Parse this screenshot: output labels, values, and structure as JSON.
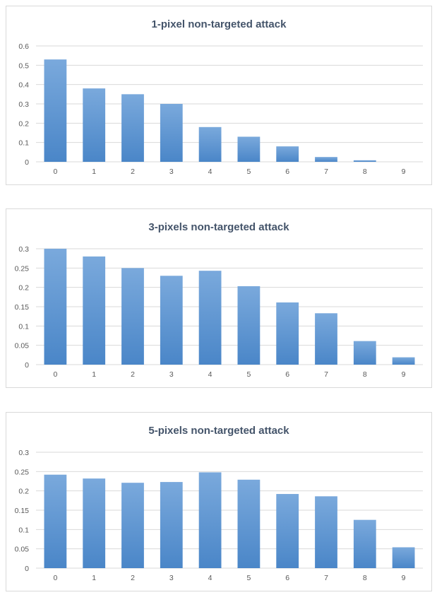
{
  "chart_data": [
    {
      "type": "bar",
      "title": "1-pixel non-targeted attack",
      "xlabel": "",
      "ylabel": "",
      "categories": [
        "0",
        "1",
        "2",
        "3",
        "4",
        "5",
        "6",
        "7",
        "8",
        "9"
      ],
      "values": [
        0.53,
        0.38,
        0.35,
        0.3,
        0.18,
        0.13,
        0.08,
        0.025,
        0.008,
        0.0
      ],
      "ylim": [
        0,
        0.6
      ],
      "yticks": [
        "0",
        "0.1",
        "0.2",
        "0.3",
        "0.4",
        "0.5",
        "0.6"
      ],
      "grid": true,
      "legend": "none",
      "bar_color": "#5b9bd5"
    },
    {
      "type": "bar",
      "title": "3-pixels non-targeted attack",
      "xlabel": "",
      "ylabel": "",
      "categories": [
        "0",
        "1",
        "2",
        "3",
        "4",
        "5",
        "6",
        "7",
        "8",
        "9"
      ],
      "values": [
        0.3,
        0.28,
        0.25,
        0.23,
        0.243,
        0.203,
        0.161,
        0.133,
        0.061,
        0.019
      ],
      "ylim": [
        0,
        0.3
      ],
      "yticks": [
        "0",
        "0.05",
        "0.1",
        "0.15",
        "0.2",
        "0.25",
        "0.3"
      ],
      "grid": true,
      "legend": "none",
      "bar_color": "#5b9bd5"
    },
    {
      "type": "bar",
      "title": "5-pixels non-targeted attack",
      "xlabel": "",
      "ylabel": "",
      "categories": [
        "0",
        "1",
        "2",
        "3",
        "4",
        "5",
        "6",
        "7",
        "8",
        "9"
      ],
      "values": [
        0.242,
        0.232,
        0.221,
        0.223,
        0.248,
        0.229,
        0.192,
        0.186,
        0.125,
        0.054
      ],
      "ylim": [
        0,
        0.3
      ],
      "yticks": [
        "0",
        "0.05",
        "0.1",
        "0.15",
        "0.2",
        "0.25",
        "0.3"
      ],
      "grid": true,
      "legend": "none",
      "bar_color": "#5b9bd5"
    }
  ]
}
